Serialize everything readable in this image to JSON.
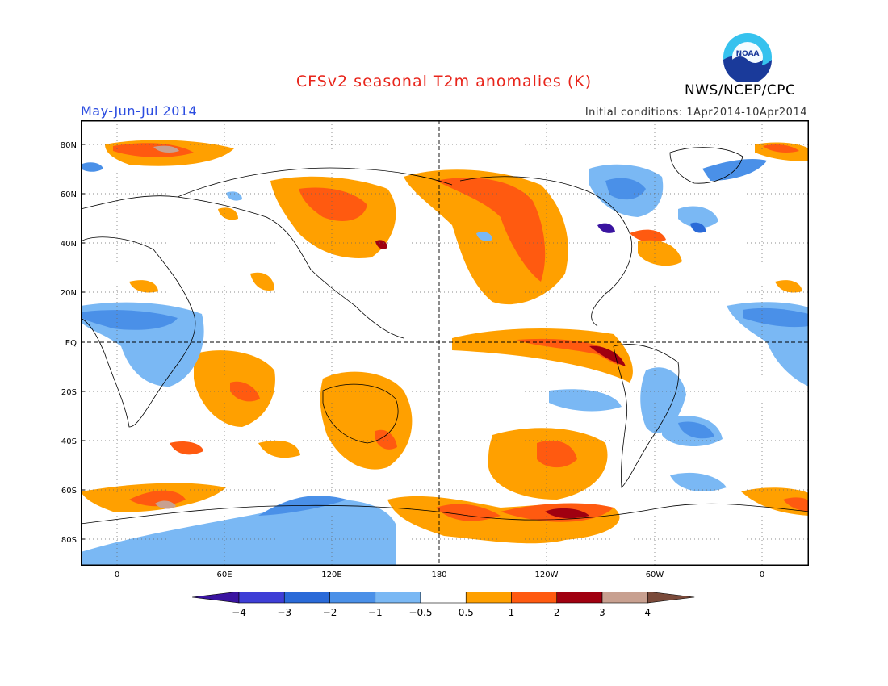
{
  "header": {
    "title": "CFSv2 seasonal T2m anomalies (K)",
    "season": "May-Jun-Jul 2014",
    "initial_conditions": "Initial conditions: 1Apr2014-10Apr2014",
    "agency": "NWS/NCEP/CPC",
    "logo_text": "NOAA"
  },
  "map": {
    "lat_ticks": [
      "80N",
      "60N",
      "40N",
      "20N",
      "EQ",
      "20S",
      "40S",
      "60S",
      "80S"
    ],
    "lon_ticks": [
      "0",
      "60E",
      "120E",
      "180",
      "120W",
      "60W",
      "0"
    ]
  },
  "legend": {
    "labels": [
      "-4",
      "-3",
      "-2",
      "-1",
      "-0.5",
      "0.5",
      "1",
      "2",
      "3",
      "4"
    ],
    "colors": [
      "#3a14a0",
      "#3e3ed6",
      "#2a6ad8",
      "#4a90e8",
      "#7ab8f4",
      "#ffffff",
      "#ffa000",
      "#ff5a10",
      "#a00010",
      "#c8a090",
      "#7a4a3a"
    ]
  }
}
